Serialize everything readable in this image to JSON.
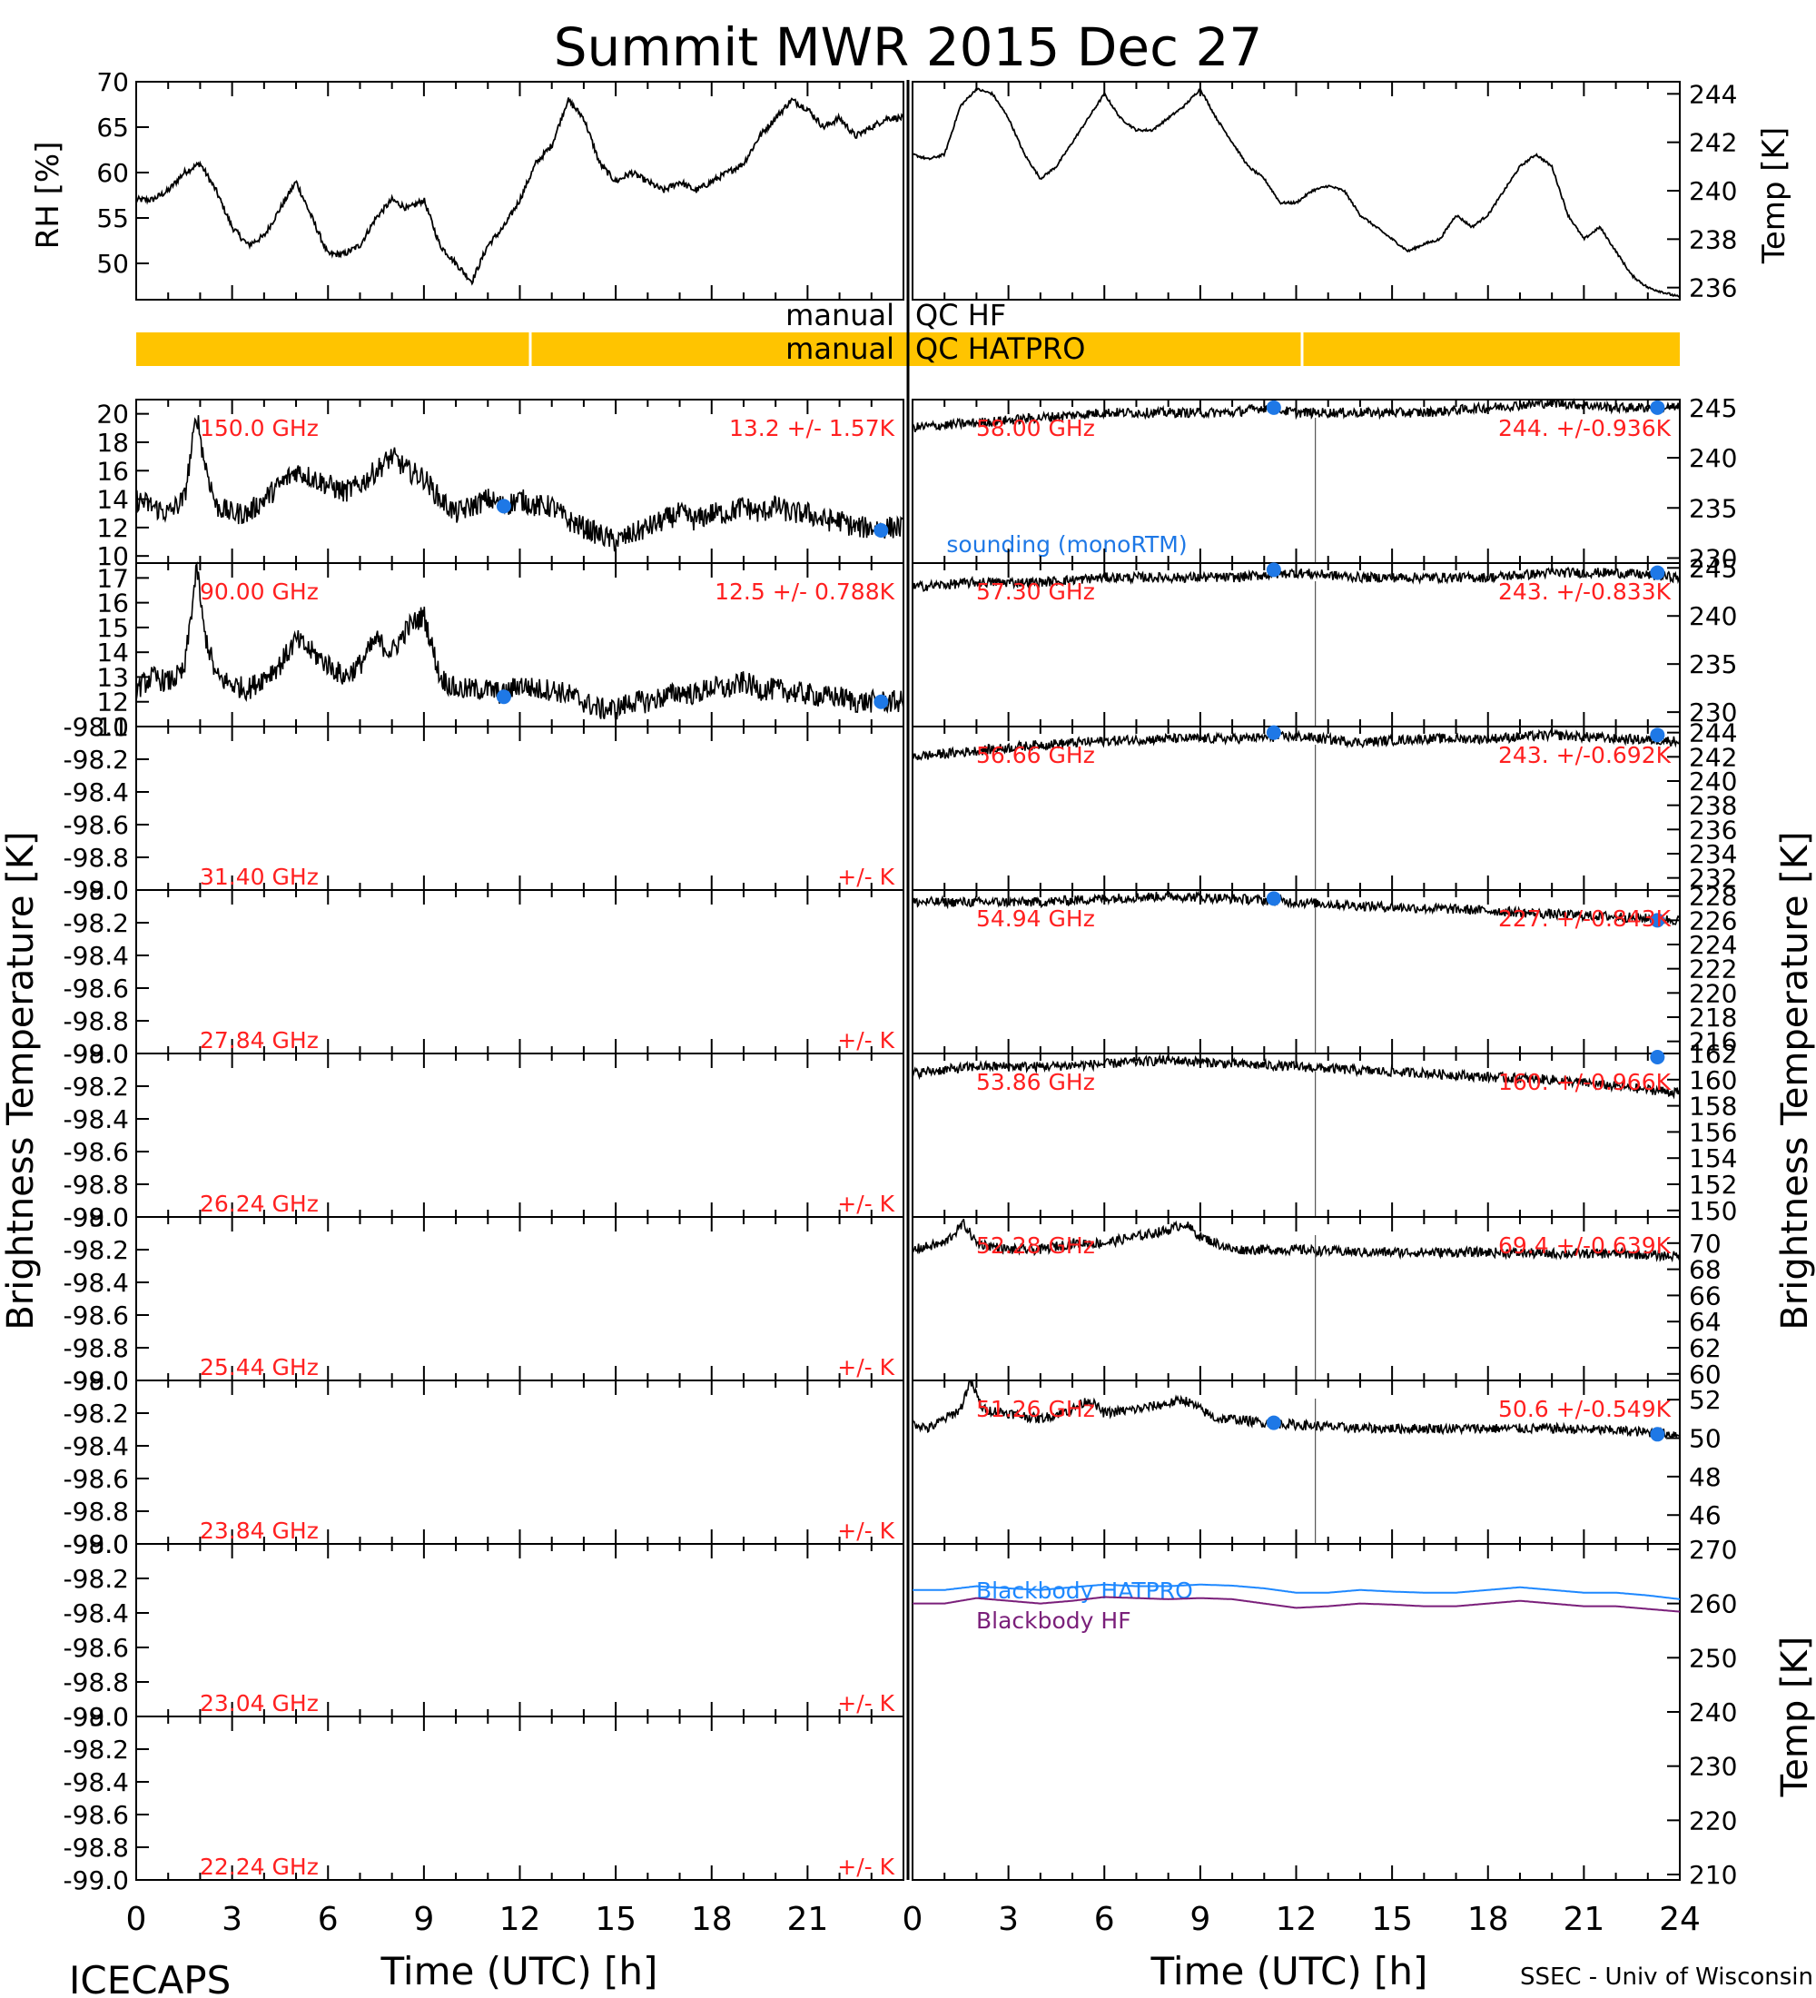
{
  "title": "Summit MWR 2015 Dec 27",
  "footer": {
    "left": "ICECAPS",
    "right": "SSEC - Univ of Wisconsin",
    "xlabel_left": "Time (UTC) [h]",
    "xlabel_right": "Time (UTC) [h]"
  },
  "axes": {
    "rh_label": "RH [%]",
    "temp_label": "Temp [K]",
    "tb_left_label": "Brightness Temperature [K]",
    "tb_right_label": "Brightness Temperature [K]",
    "bb_temp_label": "Temp [K]",
    "x_ticks": [
      "0",
      "3",
      "6",
      "9",
      "12",
      "15",
      "18",
      "21",
      "24"
    ],
    "empty_ticks": [
      "-98.0",
      "-98.2",
      "-98.4",
      "-98.6",
      "-98.8",
      "-99.0"
    ]
  },
  "qc": {
    "hf_label": "manual  QC HF",
    "hf_left": "manual",
    "hf_right": "QC HF",
    "hatpro_left": "manual",
    "hatpro_right": "QC HATPRO",
    "bar_color": "#ffc400"
  },
  "colors": {
    "annotation": "#ff2020",
    "sounding": "#1e78e6",
    "bb_hatpro": "#1e88ff",
    "bb_hf": "#7a1f7a",
    "trace": "#000000"
  },
  "chart_data": [
    {
      "type": "line",
      "id": "rh",
      "ylabel": "RH [%]",
      "ylim": [
        46,
        70
      ],
      "yticks": [
        50,
        55,
        60,
        65,
        70
      ],
      "xlim": [
        0,
        24
      ],
      "x": [
        0,
        0.5,
        1,
        1.5,
        2,
        2.5,
        3,
        3.5,
        4,
        4.5,
        5,
        5.5,
        6,
        6.5,
        7,
        7.5,
        8,
        8.5,
        9,
        9.5,
        10,
        10.5,
        11,
        11.5,
        12,
        12.5,
        13,
        13.5,
        14,
        14.5,
        15,
        15.5,
        16,
        16.5,
        17,
        17.5,
        18,
        18.5,
        19,
        19.5,
        20,
        20.5,
        21,
        21.5,
        22,
        22.5,
        23,
        23.5,
        24
      ],
      "y": [
        57,
        57,
        58,
        60,
        61,
        58,
        54,
        52,
        53,
        56,
        59,
        55,
        51,
        51,
        52,
        55,
        57,
        56,
        57,
        52,
        50,
        48,
        52,
        54,
        57,
        61,
        63,
        68,
        66,
        61,
        59,
        60,
        59,
        58,
        59,
        58,
        59,
        60,
        61,
        64,
        66,
        68,
        67,
        65,
        66,
        64,
        65,
        66,
        66
      ]
    },
    {
      "type": "line",
      "id": "temp",
      "ylabel": "Temp [K]",
      "ylim": [
        235.5,
        244.5
      ],
      "yticks": [
        236,
        238,
        240,
        242,
        244
      ],
      "xlim": [
        0,
        24
      ],
      "x": [
        0,
        0.5,
        1,
        1.5,
        2,
        2.5,
        3,
        3.5,
        4,
        4.5,
        5,
        5.5,
        6,
        6.5,
        7,
        7.5,
        8,
        8.5,
        9,
        9.5,
        10,
        10.5,
        11,
        11.5,
        12,
        12.5,
        13,
        13.5,
        14,
        14.5,
        15,
        15.5,
        16,
        16.5,
        17,
        17.5,
        18,
        18.5,
        19,
        19.5,
        20,
        20.5,
        21,
        21.5,
        22,
        22.5,
        23,
        23.5,
        24
      ],
      "y": [
        241.5,
        241.3,
        241.5,
        243.5,
        244.2,
        244,
        243,
        241.5,
        240.5,
        241,
        242,
        243,
        244,
        243,
        242.5,
        242.5,
        243,
        243.5,
        244.2,
        243,
        242,
        241,
        240.5,
        239.5,
        239.5,
        240,
        240.2,
        240,
        239,
        238.5,
        238,
        237.5,
        237.8,
        238,
        239,
        238.5,
        239,
        240,
        241,
        241.5,
        241,
        239,
        238,
        238.5,
        237.5,
        236.5,
        236,
        235.8,
        235.6
      ]
    },
    {
      "type": "line",
      "id": "ch150",
      "freq": "150.0 GHz",
      "stats": "13.2 +/-  1.57K",
      "ylim": [
        9.5,
        21
      ],
      "yticks": [
        10,
        12,
        14,
        16,
        18,
        20
      ],
      "x": [
        0,
        0.5,
        1,
        1.5,
        1.9,
        2.1,
        2.5,
        3,
        3.5,
        4,
        4.5,
        5,
        5.5,
        6,
        6.5,
        7,
        7.5,
        8,
        8.5,
        9,
        9.5,
        10,
        10.5,
        11,
        11.5,
        12,
        12.5,
        13,
        13.5,
        14,
        14.5,
        15,
        15.5,
        16,
        16.5,
        17,
        17.5,
        18,
        18.5,
        19,
        19.5,
        20,
        20.5,
        21,
        21.5,
        22,
        22.5,
        23,
        23.5,
        24
      ],
      "y": [
        14,
        13.5,
        13,
        14,
        20,
        17,
        13.5,
        13,
        13,
        14,
        15,
        16,
        15.5,
        15,
        14.5,
        15,
        16,
        17,
        16,
        15.5,
        14,
        13,
        13.5,
        14,
        13.5,
        14,
        13.5,
        13.5,
        12.5,
        12,
        11.5,
        11,
        11.5,
        12,
        12.5,
        13,
        12.5,
        13,
        13,
        13.5,
        13,
        13.5,
        13,
        13,
        12.5,
        12.5,
        12,
        12,
        12,
        12
      ],
      "sounding": [
        {
          "x": 11.5,
          "y": 13.5
        },
        {
          "x": 23.3,
          "y": 11.8
        }
      ],
      "sounding_label": "sounding (monoRTM)"
    },
    {
      "type": "line",
      "id": "ch90",
      "freq": "90.00 GHz",
      "stats": "12.5 +/- 0.788K",
      "ylim": [
        11,
        17.6
      ],
      "yticks": [
        11,
        12,
        13,
        14,
        15,
        16,
        17
      ],
      "x": [
        0,
        0.5,
        1,
        1.5,
        1.9,
        2.1,
        2.5,
        3,
        3.5,
        4,
        4.5,
        5,
        5.5,
        6,
        6.5,
        7,
        7.5,
        8,
        8.5,
        9,
        9.5,
        10,
        10.5,
        11,
        11.5,
        12,
        12.5,
        13,
        13.5,
        14,
        14.5,
        15,
        15.5,
        16,
        16.5,
        17,
        17.5,
        18,
        18.5,
        19,
        19.5,
        20,
        20.5,
        21,
        21.5,
        22,
        22.5,
        23,
        23.5,
        24
      ],
      "y": [
        12.5,
        13,
        12.8,
        13.2,
        17.5,
        15,
        13,
        12.7,
        12.5,
        13,
        13.5,
        14.5,
        14,
        13.5,
        13,
        13.5,
        14.5,
        14,
        15,
        15.5,
        13,
        12.5,
        12.5,
        12.5,
        12.3,
        12.7,
        12.5,
        12.5,
        12.3,
        12,
        11.7,
        11.7,
        12,
        12,
        12.2,
        12.4,
        12.3,
        12.6,
        12.5,
        12.8,
        12.5,
        12.5,
        12.4,
        12.3,
        12.2,
        12.2,
        12,
        12,
        12,
        12
      ],
      "sounding": [
        {
          "x": 11.5,
          "y": 12.2
        },
        {
          "x": 23.3,
          "y": 12
        }
      ]
    },
    {
      "type": "line",
      "id": "ch3140",
      "freq": "31.40 GHz",
      "stats": "+/-     K",
      "empty": true
    },
    {
      "type": "line",
      "id": "ch2784",
      "freq": "27.84 GHz",
      "stats": "+/-     K",
      "empty": true
    },
    {
      "type": "line",
      "id": "ch2624",
      "freq": "26.24 GHz",
      "stats": "+/-     K",
      "empty": true
    },
    {
      "type": "line",
      "id": "ch2544",
      "freq": "25.44 GHz",
      "stats": "+/-     K",
      "empty": true
    },
    {
      "type": "line",
      "id": "ch2384",
      "freq": "23.84 GHz",
      "stats": "+/-     K",
      "empty": true
    },
    {
      "type": "line",
      "id": "ch2304",
      "freq": "23.04 GHz",
      "stats": "+/-     K",
      "empty": true
    },
    {
      "type": "line",
      "id": "ch2224",
      "freq": "22.24 GHz",
      "stats": "+/-     K",
      "empty": true
    },
    {
      "type": "line",
      "id": "ch58",
      "freq": "58.00 GHz",
      "stats": "244. +/-0.936K",
      "ylim": [
        229.5,
        245.8
      ],
      "yticks": [
        230,
        235,
        240,
        245
      ],
      "x": [
        0,
        2,
        4,
        6,
        8,
        10,
        11,
        12,
        12.6,
        14,
        16,
        18,
        20,
        22,
        24
      ],
      "y": [
        243,
        243.5,
        244,
        244.5,
        244.5,
        244.5,
        245,
        244.5,
        244.5,
        244.5,
        244.5,
        245,
        245.5,
        245,
        245
      ],
      "sounding": [
        {
          "x": 11.3,
          "y": 245
        },
        {
          "x": 23.3,
          "y": 245
        }
      ]
    },
    {
      "type": "line",
      "id": "ch5730",
      "freq": "57.30 GHz",
      "stats": "243. +/-0.833K",
      "ylim": [
        228.5,
        245.5
      ],
      "yticks": [
        230,
        235,
        240,
        245
      ],
      "x": [
        0,
        2,
        4,
        6,
        8,
        10,
        12,
        14,
        16,
        18,
        20,
        22,
        24
      ],
      "y": [
        243,
        243.5,
        243.5,
        244,
        244,
        244,
        244.5,
        244,
        244,
        244,
        244.5,
        244.5,
        244
      ],
      "sounding": [
        {
          "x": 11.3,
          "y": 244.8
        },
        {
          "x": 23.3,
          "y": 244.5
        }
      ]
    },
    {
      "type": "line",
      "id": "ch5666",
      "freq": "56.66 GHz",
      "stats": "243. +/-0.692K",
      "ylim": [
        231,
        244.5
      ],
      "yticks": [
        232,
        234,
        236,
        238,
        240,
        242,
        244
      ],
      "x": [
        0,
        2,
        4,
        6,
        8,
        10,
        12,
        14,
        16,
        18,
        20,
        22,
        24
      ],
      "y": [
        242,
        242.5,
        243,
        243.3,
        243.5,
        243.5,
        243.7,
        243.2,
        243.5,
        243.5,
        243.8,
        243.5,
        243.3
      ],
      "sounding": [
        {
          "x": 11.3,
          "y": 244
        },
        {
          "x": 23.3,
          "y": 243.8
        }
      ]
    },
    {
      "type": "line",
      "id": "ch5494",
      "freq": "54.94 GHz",
      "stats": "227. +/-0.843K",
      "ylim": [
        215,
        228.5
      ],
      "yticks": [
        216,
        218,
        220,
        222,
        224,
        226,
        228
      ],
      "x": [
        0,
        2,
        4,
        6,
        8,
        10,
        12,
        14,
        16,
        18,
        20,
        22,
        24
      ],
      "y": [
        227.5,
        227.5,
        227.5,
        227.8,
        228,
        227.8,
        227.5,
        227.2,
        227,
        226.8,
        226.5,
        226.3,
        226
      ],
      "sounding": [
        {
          "x": 11.3,
          "y": 227.8
        },
        {
          "x": 23.3,
          "y": 226
        }
      ]
    },
    {
      "type": "line",
      "id": "ch5386",
      "freq": "53.86 GHz",
      "stats": "160. +/-0.966K",
      "ylim": [
        149.5,
        162
      ],
      "yticks": [
        150,
        152,
        154,
        156,
        158,
        160,
        162
      ],
      "x": [
        0,
        2,
        4,
        6,
        8,
        10,
        12,
        14,
        16,
        18,
        20,
        22,
        24
      ],
      "y": [
        160.5,
        161,
        161,
        161.2,
        161.5,
        161.2,
        161,
        160.7,
        160.5,
        160.2,
        160,
        159.5,
        159
      ],
      "sounding": [
        {
          "x": 23.3,
          "y": 161.8
        }
      ]
    },
    {
      "type": "line",
      "id": "ch5228",
      "freq": "52.28 GHz",
      "stats": "69.4 +/-0.639K",
      "ylim": [
        59.5,
        72
      ],
      "yticks": [
        60,
        62,
        64,
        66,
        68,
        70
      ],
      "x": [
        0,
        1,
        1.6,
        2,
        3,
        4,
        5,
        6,
        7,
        8,
        8.5,
        9,
        10,
        12,
        14,
        16,
        18,
        20,
        22,
        24
      ],
      "y": [
        69.5,
        70,
        71.5,
        70,
        69.5,
        69.5,
        70,
        70,
        70.5,
        71,
        71.5,
        70.5,
        69.5,
        69.5,
        69.3,
        69.3,
        69.3,
        69.2,
        69.2,
        69
      ],
      "sounding": []
    },
    {
      "type": "line",
      "id": "ch5126",
      "freq": "51.26 GHz",
      "stats": "50.6 +/-0.549K",
      "ylim": [
        44.5,
        53
      ],
      "yticks": [
        46,
        48,
        50,
        52
      ],
      "x": [
        0,
        0.5,
        1,
        1.5,
        1.8,
        2.2,
        3,
        4,
        5,
        5.5,
        6,
        7,
        8,
        8.5,
        9,
        9.5,
        10,
        11,
        12,
        14,
        16,
        18,
        20,
        22,
        24
      ],
      "y": [
        50.8,
        50.5,
        51,
        51.5,
        53,
        51.5,
        51.3,
        51,
        51.5,
        52,
        51.3,
        51.5,
        51.8,
        52,
        51.5,
        51,
        51,
        50.8,
        50.7,
        50.5,
        50.5,
        50.5,
        50.5,
        50.4,
        50.2
      ],
      "sounding": [
        {
          "x": 11.3,
          "y": 50.8
        },
        {
          "x": 23.3,
          "y": 50.2
        }
      ]
    },
    {
      "type": "line",
      "id": "blackbody",
      "ylabel": "Temp [K]",
      "ylim": [
        209,
        271
      ],
      "yticks": [
        210,
        220,
        230,
        240,
        250,
        260,
        270
      ],
      "series": [
        {
          "name": "Blackbody HATPRO",
          "x": [
            0,
            1,
            2,
            3,
            4,
            5,
            6,
            7,
            8,
            9,
            10,
            11,
            12,
            13,
            14,
            15,
            16,
            17,
            18,
            19,
            20,
            21,
            22,
            23,
            24
          ],
          "y": [
            262.5,
            262.5,
            263.2,
            262.8,
            262.5,
            263,
            263.5,
            263.2,
            263.2,
            263.5,
            263.3,
            262.8,
            262,
            262,
            262.5,
            262.2,
            262,
            262,
            262.5,
            263,
            262.5,
            262,
            262,
            261.5,
            260.8
          ]
        },
        {
          "name": "Blackbody HF",
          "x": [
            0,
            1,
            2,
            3,
            4,
            5,
            6,
            7,
            8,
            9,
            10,
            11,
            12,
            13,
            14,
            15,
            16,
            17,
            18,
            19,
            20,
            21,
            22,
            23,
            24
          ],
          "y": [
            260,
            260,
            261,
            260.5,
            260,
            260.5,
            261.2,
            261,
            260.8,
            261,
            260.8,
            260,
            259.2,
            259.5,
            260,
            259.8,
            259.5,
            259.5,
            260,
            260.5,
            260,
            259.5,
            259.5,
            259,
            258.5
          ]
        }
      ]
    }
  ]
}
